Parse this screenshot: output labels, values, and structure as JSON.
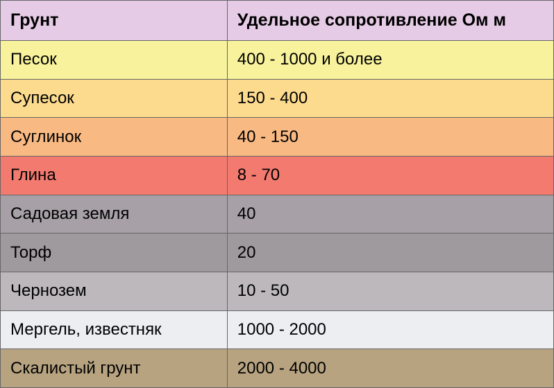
{
  "table": {
    "header_bg": "#e5cbe5",
    "header_text_color": "#000000",
    "border_color": "#666666",
    "columns": [
      {
        "label": "Грунт"
      },
      {
        "label": "Удельное сопротивление Ом м"
      }
    ],
    "rows": [
      {
        "soil": "Песок",
        "value": "400 - 1000 и более",
        "bg": "#f7f29b",
        "text": "#000000"
      },
      {
        "soil": "Супесок",
        "value": "150 - 400",
        "bg": "#fcdb8e",
        "text": "#000000"
      },
      {
        "soil": "Суглинок",
        "value": "40 - 150",
        "bg": "#f8b983",
        "text": "#000000"
      },
      {
        "soil": "Глина",
        "value": "8 - 70",
        "bg": "#f37a6f",
        "text": "#000000"
      },
      {
        "soil": "Садовая земля",
        "value": "40",
        "bg": "#a7a0a6",
        "text": "#000000"
      },
      {
        "soil": "Торф",
        "value": "20",
        "bg": "#9f9a9d",
        "text": "#000000"
      },
      {
        "soil": "Чернозем",
        "value": "10 - 50",
        "bg": "#bcb8bb",
        "text": "#000000"
      },
      {
        "soil": "Мергель, известняк",
        "value": "1000 - 2000",
        "bg": "#eceef2",
        "text": "#000000"
      },
      {
        "soil": "Скалистый грунт",
        "value": "2000 - 4000",
        "bg": "#b7a380",
        "text": "#000000"
      }
    ]
  }
}
